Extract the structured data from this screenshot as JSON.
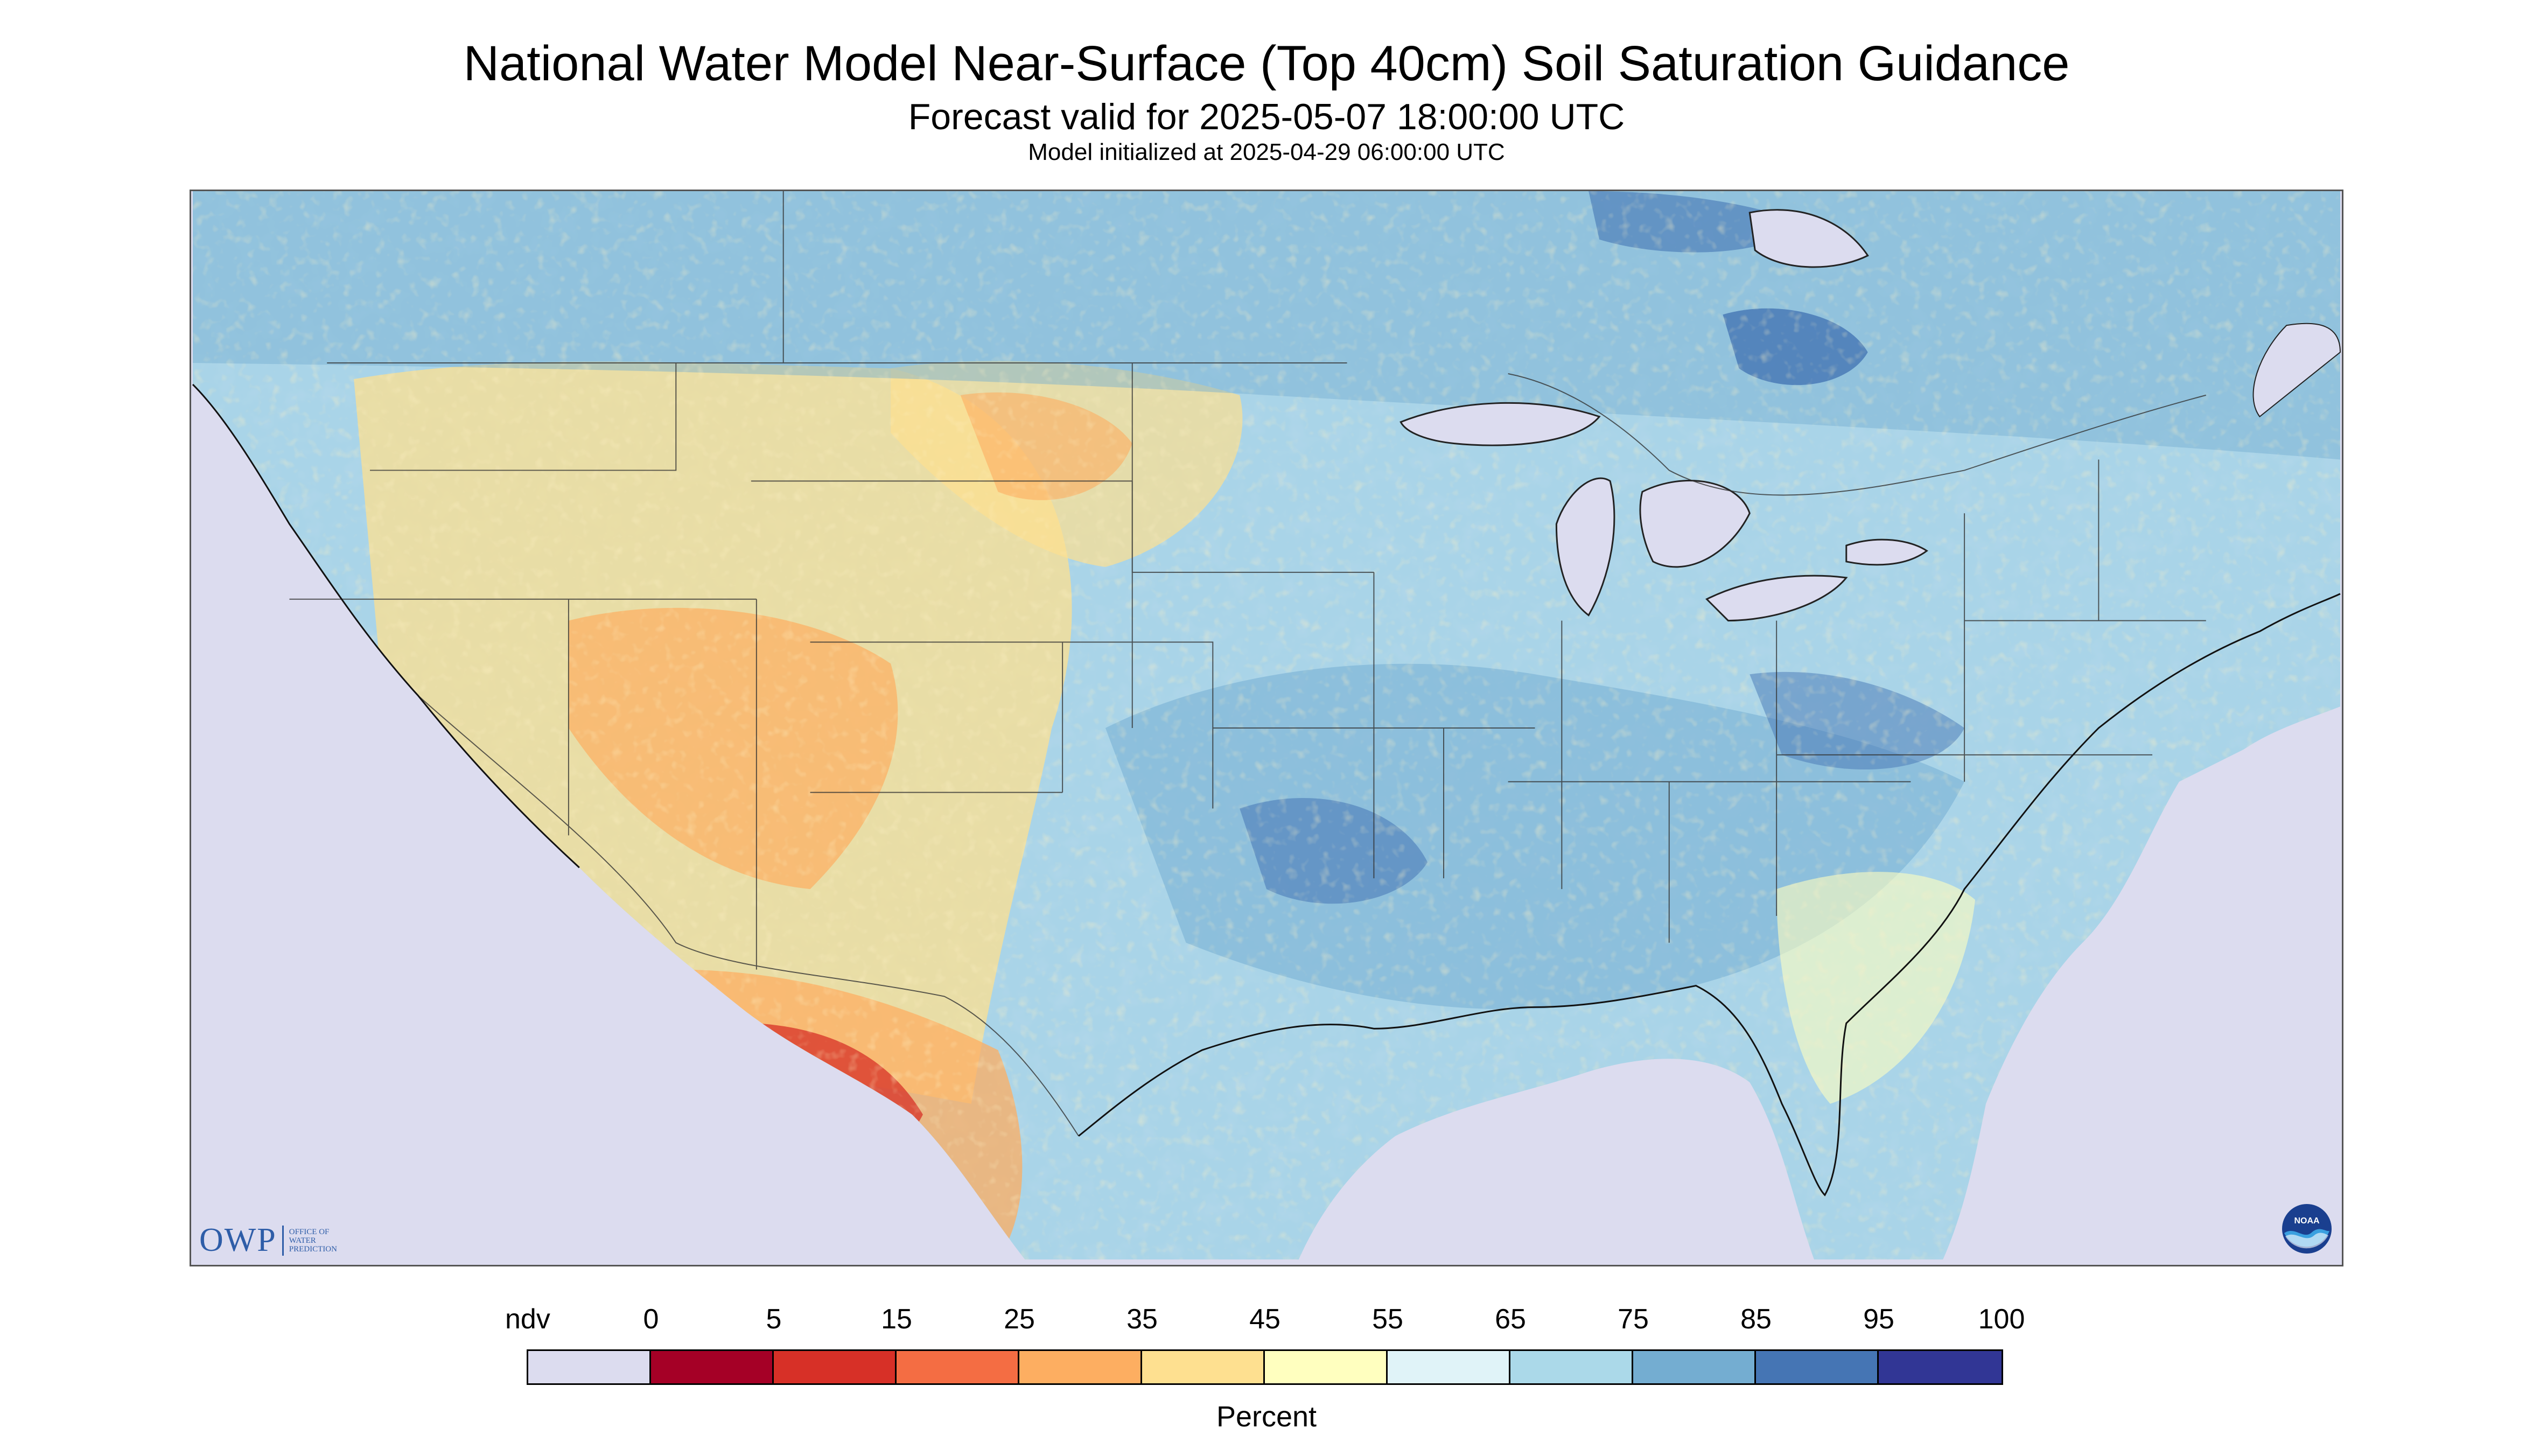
{
  "title": "National Water Model Near-Surface (Top 40cm) Soil Saturation Guidance",
  "subtitle": "Forecast valid for 2025-05-07 18:00:00 UTC",
  "init": "Model initialized at 2025-04-29 06:00:00 UTC",
  "map": {
    "domain": "Contiguous United States with parts of Canada and Mexico",
    "nodata_color": "#dcdcef",
    "water_color": "#dcdcef"
  },
  "branding": {
    "owp": "OWP",
    "owp_full": [
      "Office of",
      "Water",
      "Prediction"
    ],
    "noaa": "NOAA"
  },
  "legend": {
    "units": "Percent",
    "labels": [
      "ndv",
      "0",
      "5",
      "15",
      "25",
      "35",
      "45",
      "55",
      "65",
      "75",
      "85",
      "95",
      "100"
    ],
    "colors": [
      "#dcdcef",
      "#a50026",
      "#d73027",
      "#f46d43",
      "#fdae61",
      "#fee090",
      "#ffffbf",
      "#e0f3f8",
      "#abd9e9",
      "#74add1",
      "#4575b4",
      "#313695"
    ]
  }
}
